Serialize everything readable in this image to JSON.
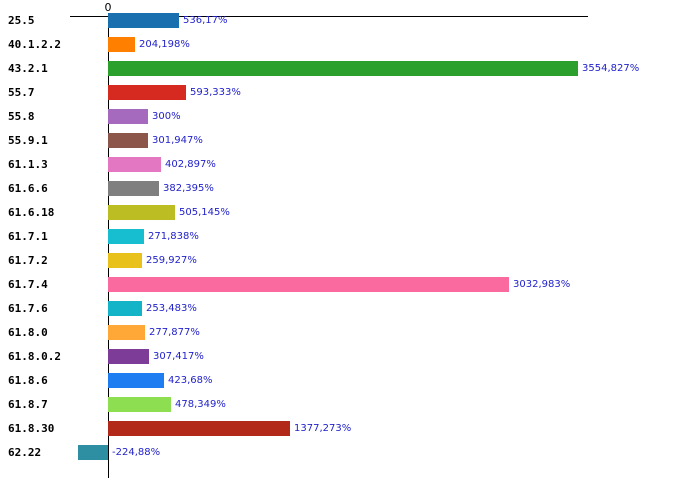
{
  "chart_data": {
    "type": "bar",
    "orientation": "horizontal",
    "title": "",
    "xlabel": "",
    "ylabel": "",
    "axis_zero_label": "0",
    "grid": false,
    "legend": false,
    "categories": [
      "25.5",
      "40.1.2.2",
      "43.2.1",
      "55.7",
      "55.8",
      "55.9.1",
      "61.1.3",
      "61.6.6",
      "61.6.18",
      "61.7.1",
      "61.7.2",
      "61.7.4",
      "61.7.6",
      "61.8.0",
      "61.8.0.2",
      "61.8.6",
      "61.8.7",
      "61.8.30",
      "62.22"
    ],
    "values": [
      536.17,
      204.198,
      3554.827,
      593.333,
      300,
      301.947,
      402.897,
      382.395,
      505.145,
      271.838,
      259.927,
      3032.983,
      253.483,
      277.877,
      307.417,
      423.68,
      478.349,
      1377.273,
      -224.88
    ],
    "value_labels": [
      "536,17%",
      "204,198%",
      "3554,827%",
      "593,333%",
      "300%",
      "301,947%",
      "402,897%",
      "382,395%",
      "505,145%",
      "271,838%",
      "259,927%",
      "3032,983%",
      "253,483%",
      "277,877%",
      "307,417%",
      "423,68%",
      "478,349%",
      "1377,273%",
      "-224,88%"
    ],
    "bar_colors": [
      "#1a6fae",
      "#ff8000",
      "#2ca02c",
      "#d62a20",
      "#a569bd",
      "#8c564b",
      "#e377c2",
      "#7f7f7f",
      "#bcbd22",
      "#17becf",
      "#e8c21a",
      "#fb6a9f",
      "#14b4c8",
      "#ffa838",
      "#7d3c98",
      "#1e7df0",
      "#8ede52",
      "#b22819",
      "#2e8fa3"
    ],
    "value_label_color": "#2222cc",
    "axis_color": "#000000",
    "xlim_value_range": [
      -224.88,
      3554.827
    ]
  }
}
